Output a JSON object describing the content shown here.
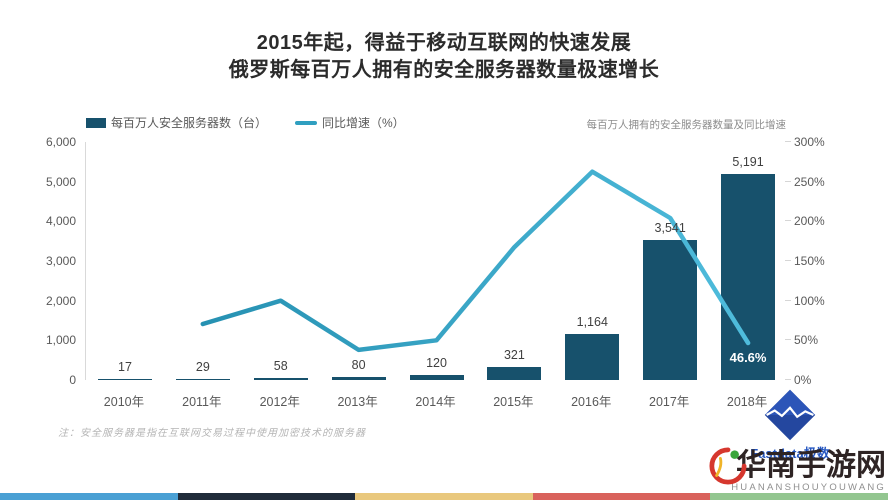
{
  "title": {
    "line1": "2015年起，得益于移动互联网的快速发展",
    "line2": "俄罗斯每百万人拥有的安全服务器数量极速增长"
  },
  "legend": [
    {
      "label": "每百万人安全服务器数（台）",
      "type": "bar",
      "color": "#17516c"
    },
    {
      "label": "同比增速（%）",
      "type": "line",
      "color": "#2f9fc0"
    }
  ],
  "subtitle_right": "每百万人拥有的安全服务器数量及同比增速",
  "chart_data": {
    "type": "bar",
    "subtype": "bar+line combo",
    "categories": [
      "2010年",
      "2011年",
      "2012年",
      "2013年",
      "2014年",
      "2015年",
      "2016年",
      "2017年",
      "2018年"
    ],
    "series": [
      {
        "name": "每百万人安全服务器数（台）",
        "type": "bar",
        "axis": "left",
        "color": "#17516c",
        "values": [
          17,
          29,
          58,
          80,
          120,
          321,
          1164,
          3541,
          5191
        ],
        "labels": [
          "17",
          "29",
          "58",
          "80",
          "120",
          "321",
          "1,164",
          "3,541",
          "5,191"
        ]
      },
      {
        "name": "同比增速（%）",
        "type": "line",
        "axis": "right",
        "color_start": "#2691b2",
        "color_end": "#4fbcdc",
        "values": [
          null,
          70.6,
          100.0,
          37.9,
          50.0,
          167.5,
          262.6,
          204.2,
          46.6
        ],
        "point_labels": [
          null,
          null,
          null,
          null,
          null,
          null,
          null,
          null,
          "46.6%"
        ]
      }
    ],
    "left_axis": {
      "min": 0,
      "max": 6000,
      "ticks": [
        "0",
        "1,000",
        "2,000",
        "3,000",
        "4,000",
        "5,000",
        "6,000"
      ]
    },
    "right_axis": {
      "min": 0,
      "max": 300,
      "ticks": [
        "0%",
        "50%",
        "100%",
        "150%",
        "200%",
        "250%",
        "300%"
      ]
    },
    "grid": false,
    "legend_position": "top-left",
    "title": "2015年起，得益于移动互联网的快速发展 俄罗斯每百万人拥有的安全服务器数量极速增长"
  },
  "note": "注：安全服务器是指在互联网交易过程中使用加密技术的服务器",
  "branding": {
    "logo_text": "Fastdata极数"
  },
  "watermark": {
    "text": "华南手游网",
    "subtext": "HUANANSHOUYOUWANG"
  },
  "footer_strip_colors": [
    "#4aa0d4",
    "#202c3a",
    "#e9c87d",
    "#d9625c",
    "#93c690"
  ]
}
